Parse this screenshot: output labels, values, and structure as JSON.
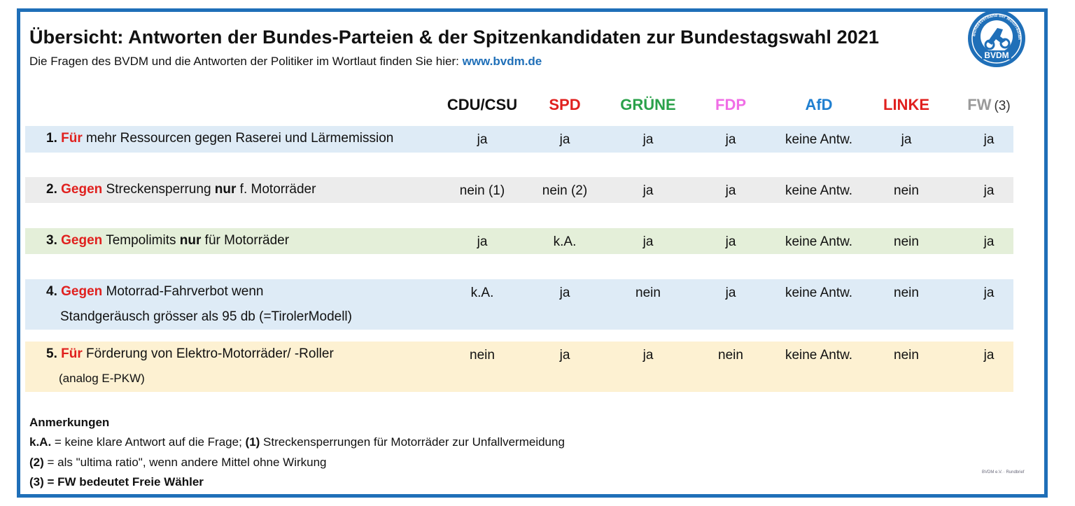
{
  "title": "Übersicht: Antworten der Bundes-Parteien & der Spitzenkandidaten zur Bundestagswahl 2021",
  "subtitle": {
    "text": "Die Fragen des BVDM und die Antworten der Politiker im Wortlaut finden Sie hier: ",
    "link": "www.bvdm.de"
  },
  "logo": {
    "label": "BVDM",
    "ring_text": "Bundesverband der Motorradfahrer e.V.",
    "color": "#1f6fb8"
  },
  "parties": [
    {
      "name": "CDU/CSU",
      "color": "#111111",
      "suffix": ""
    },
    {
      "name": "SPD",
      "color": "#e0201e",
      "suffix": ""
    },
    {
      "name": "GRÜNE",
      "color": "#2aa14a",
      "suffix": ""
    },
    {
      "name": "FDP",
      "color": "#f06ee6",
      "suffix": ""
    },
    {
      "name": "AfD",
      "color": "#1f7fd0",
      "suffix": ""
    },
    {
      "name": "LINKE",
      "color": "#e0201e",
      "suffix": ""
    },
    {
      "name": "FW",
      "color": "#9a9a9a",
      "suffix": "(3)"
    }
  ],
  "questions": [
    {
      "num": "1.",
      "keyword": "Für",
      "rest_a": " mehr Ressourcen gegen Raserei und Lärmemission",
      "bold": "",
      "rest_b": "",
      "line2": "",
      "bg": "#deebf6",
      "answers": [
        "ja",
        "ja",
        "ja",
        "ja",
        "keine Antw.",
        "ja",
        "ja"
      ]
    },
    {
      "num": "2.",
      "keyword": "Gegen",
      "rest_a": " Streckensperrung ",
      "bold": "nur",
      "rest_b": " f. Motorräder",
      "line2": "",
      "bg": "#ececec",
      "answers": [
        "nein (1)",
        "nein (2)",
        "ja",
        "ja",
        "keine Antw.",
        "nein",
        "ja"
      ]
    },
    {
      "num": "3.",
      "keyword": "Gegen",
      "rest_a": " Tempolimits  ",
      "bold": "nur",
      "rest_b": " für Motorräder",
      "line2": "",
      "bg": "#e4efd9",
      "answers": [
        "ja",
        "k.A.",
        "ja",
        "ja",
        "keine Antw.",
        "nein",
        "ja"
      ]
    },
    {
      "num": "4.",
      "keyword": "Gegen",
      "rest_a": " Motorrad-Fahrverbot  wenn",
      "bold": "",
      "rest_b": "",
      "line2": "Standgeräusch grösser als 95 db (=TirolerModell)",
      "bg": "#deebf6",
      "answers": [
        "k.A.",
        "ja",
        "nein",
        "ja",
        "keine Antw.",
        "nein",
        "ja"
      ]
    },
    {
      "num": "5.",
      "keyword": "Für",
      "rest_a": " Förderung von Elektro-Motorräder/ -Roller",
      "bold": "",
      "rest_b": "",
      "line2": "(analog E-PKW)",
      "bg": "#fdf1d2",
      "answers": [
        "nein",
        "ja",
        "ja",
        "nein",
        "keine Antw.",
        "nein",
        "ja"
      ]
    }
  ],
  "notes": {
    "heading": "Anmerkungen",
    "n1_key": "k.A.",
    "n1_text": " = keine  klare Antwort auf die Frage;  ",
    "n1b_key": "(1)",
    "n1b_text": " Streckensperrungen für Motorräder zur Unfallvermeidung",
    "n2_key": "(2)",
    "n2_text": " =  als \"ultima ratio\", wenn andere Mittel ohne Wirkung",
    "n3": "(3) = FW  bedeutet Freie Wähler"
  },
  "footer": "BVDM e.V. · Rundbrief"
}
